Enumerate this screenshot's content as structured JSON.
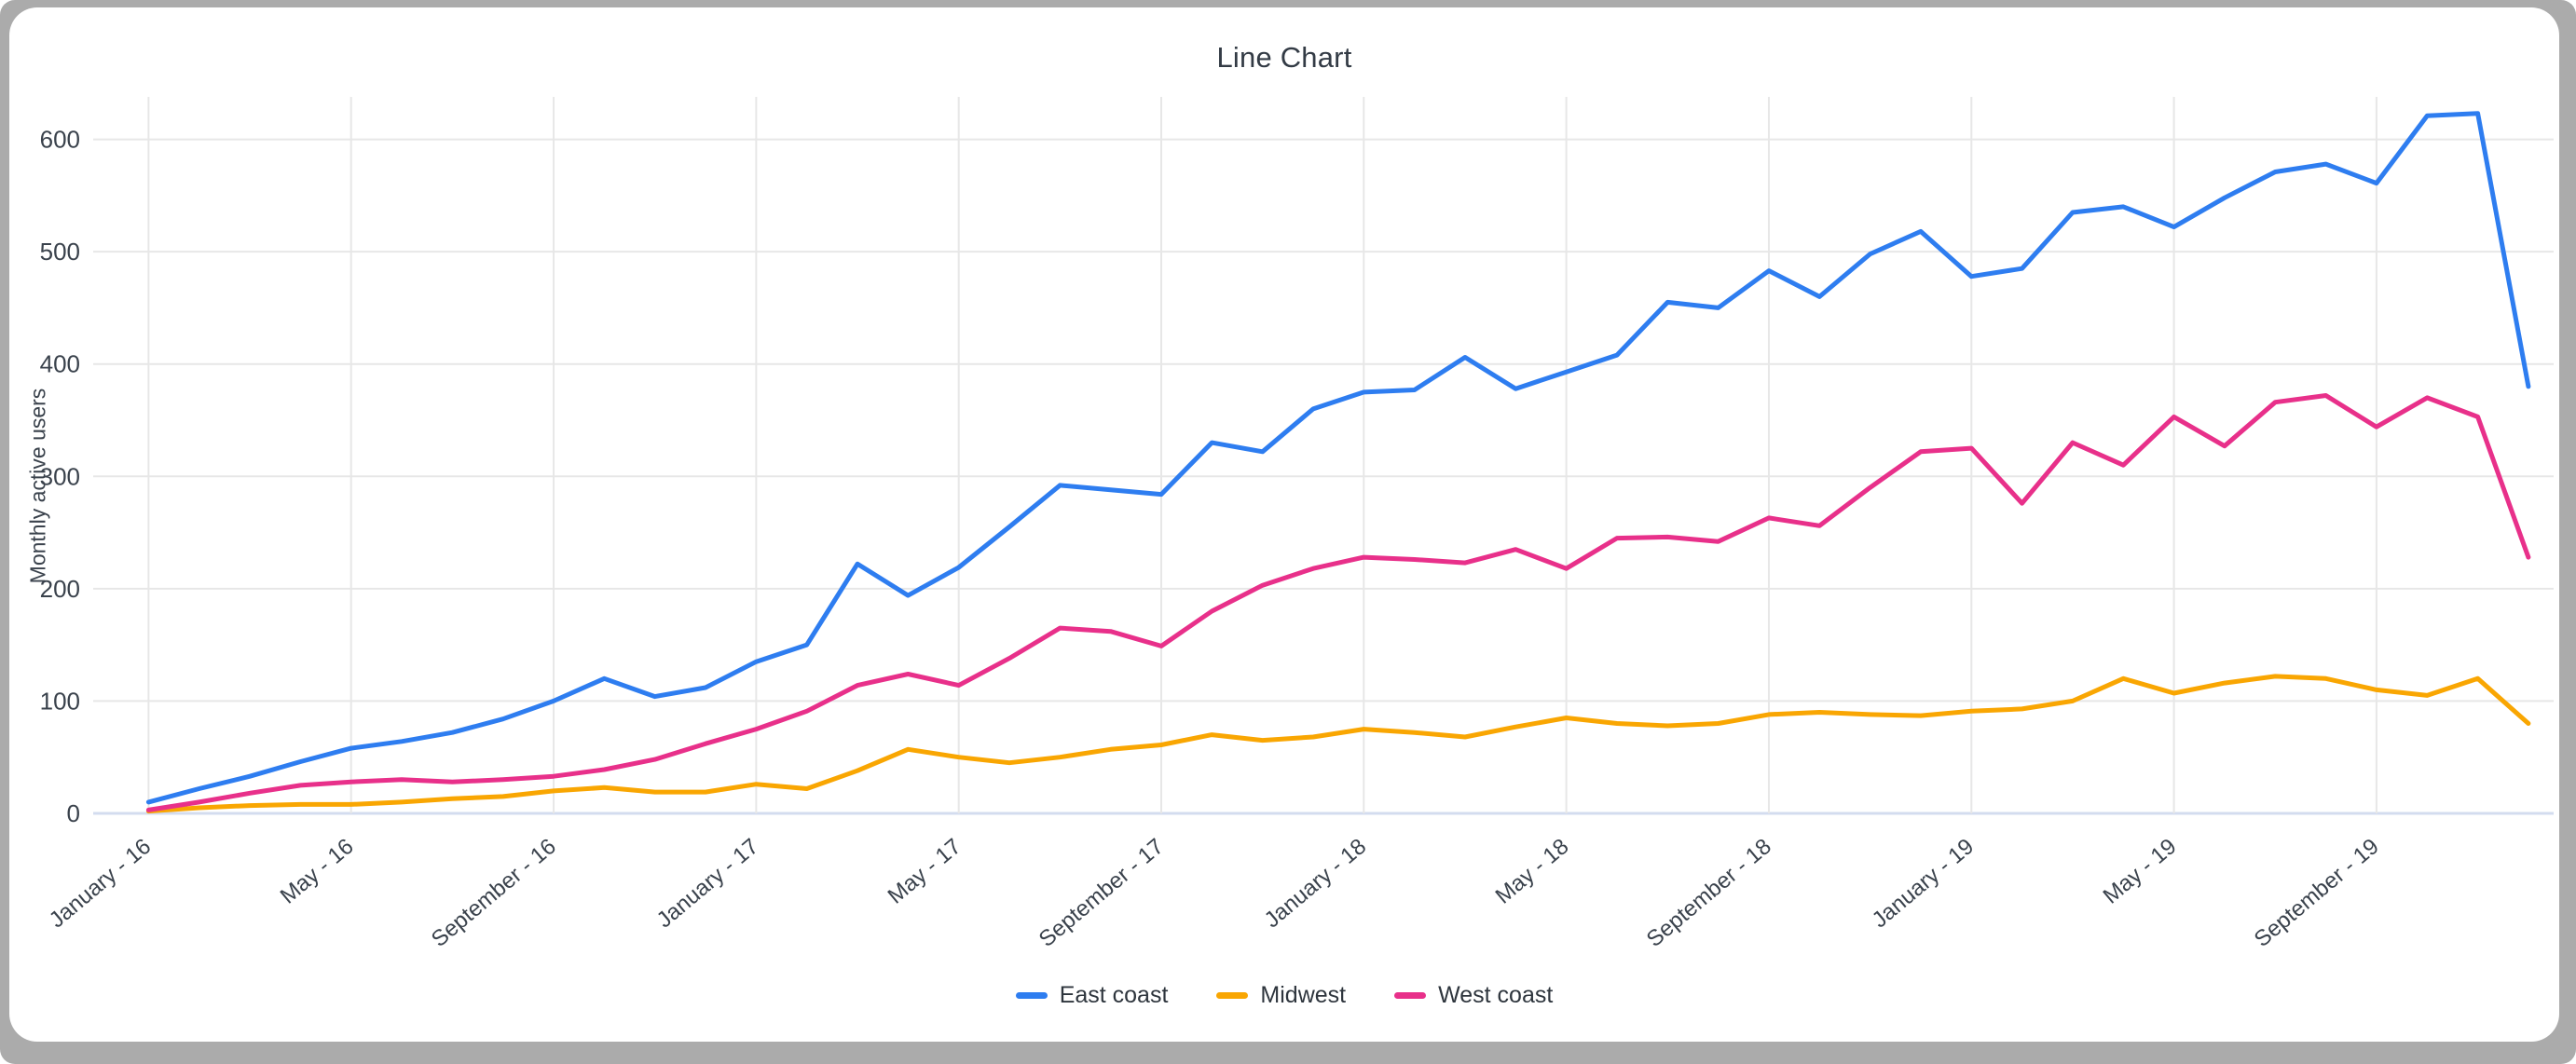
{
  "header": {
    "title": "Line Chart"
  },
  "chart_data": {
    "type": "line",
    "title": "Line Chart",
    "xlabel": "",
    "ylabel": "Monthly active users",
    "ylim": [
      0,
      650
    ],
    "grid": true,
    "legend_position": "bottom",
    "n_points": 48,
    "x_range_note": "monthly points from January 2016 through December 2019",
    "x_tick_labels": [
      "January - 16",
      "May - 16",
      "September - 16",
      "January - 17",
      "May - 17",
      "September - 17",
      "January - 18",
      "May - 18",
      "September - 18",
      "January - 19",
      "May - 19",
      "September - 19"
    ],
    "x_tick_month_indices": [
      0,
      4,
      8,
      12,
      16,
      20,
      24,
      28,
      32,
      36,
      40,
      44
    ],
    "y_ticks": [
      0,
      100,
      200,
      300,
      400,
      500,
      600
    ],
    "series": [
      {
        "name": "East coast",
        "color": "#2E7DF0",
        "values": [
          10,
          22,
          33,
          46,
          58,
          64,
          72,
          84,
          100,
          120,
          104,
          112,
          135,
          150,
          222,
          194,
          219,
          255,
          292,
          288,
          284,
          330,
          322,
          360,
          375,
          377,
          406,
          378,
          393,
          408,
          455,
          450,
          483,
          460,
          498,
          518,
          478,
          485,
          535,
          540,
          522,
          548,
          571,
          578,
          561,
          621,
          623,
          380
        ]
      },
      {
        "name": "Midwest",
        "color": "#F9A602",
        "values": [
          2,
          5,
          7,
          8,
          8,
          10,
          13,
          15,
          20,
          23,
          19,
          19,
          26,
          22,
          38,
          57,
          50,
          45,
          50,
          57,
          61,
          70,
          65,
          68,
          75,
          72,
          68,
          77,
          85,
          80,
          78,
          80,
          88,
          90,
          88,
          87,
          91,
          93,
          100,
          120,
          107,
          116,
          122,
          120,
          110,
          105,
          120,
          80
        ]
      },
      {
        "name": "West coast",
        "color": "#E8308A",
        "values": [
          3,
          10,
          18,
          25,
          28,
          30,
          28,
          30,
          33,
          39,
          48,
          62,
          75,
          91,
          114,
          124,
          114,
          138,
          165,
          162,
          149,
          180,
          203,
          218,
          228,
          226,
          223,
          235,
          218,
          245,
          246,
          242,
          263,
          256,
          290,
          322,
          325,
          276,
          330,
          310,
          353,
          327,
          366,
          372,
          344,
          370,
          353,
          228
        ]
      }
    ],
    "colors": {
      "gridline": "#E7E7E7",
      "baseline": "#D3DCEF",
      "tick_text": "#3a424c",
      "title_text": "#333b45"
    }
  }
}
